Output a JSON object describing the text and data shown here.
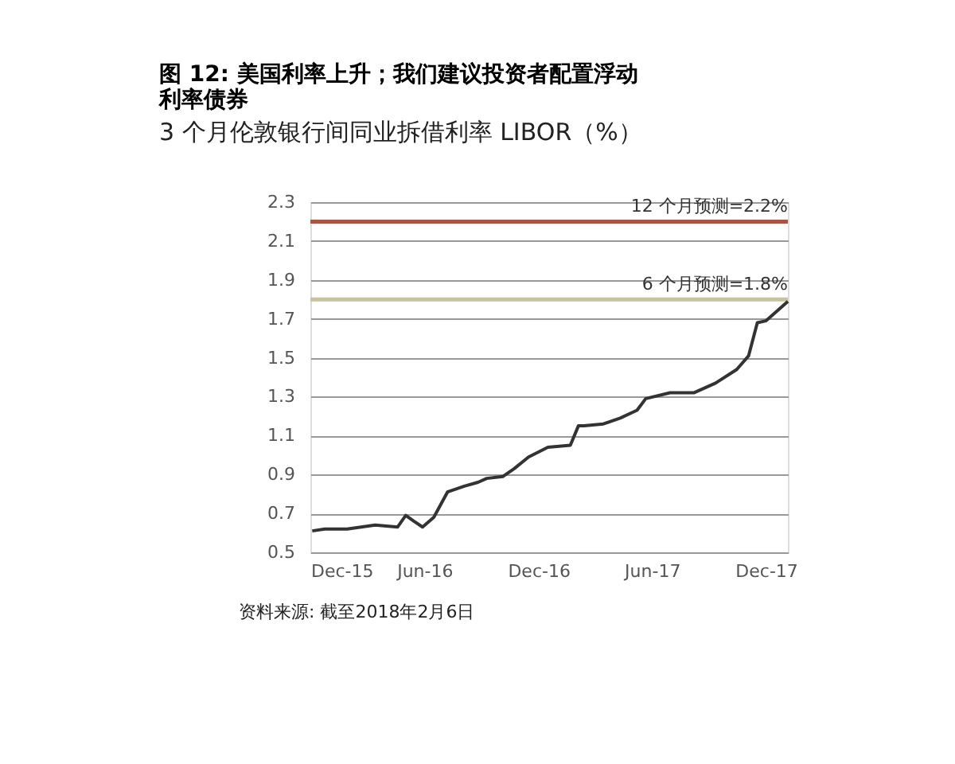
{
  "chart_data": {
    "type": "line",
    "title": "图 12: 美国利率上升；我们建议投资者配置浮动利率债券",
    "subtitle": "3 个月伦敦银行间同业拆借利率 LIBOR（%）",
    "annotations": [
      "资料来源: 截至2018年2月6日"
    ],
    "x": [
      "2015-12-04",
      "2015-12-24",
      "2016-01-29",
      "2016-03-14",
      "2016-04-19",
      "2016-05-02",
      "2016-05-15",
      "2016-05-29",
      "2016-06-16",
      "2016-07-08",
      "2016-08-04",
      "2016-08-26",
      "2016-09-09",
      "2016-10-05",
      "2016-10-23",
      "2016-11-15",
      "2016-12-16",
      "2017-01-21",
      "2017-02-03",
      "2017-02-12",
      "2017-03-15",
      "2017-04-11",
      "2017-05-08",
      "2017-05-22",
      "2017-06-30",
      "2017-08-07",
      "2017-09-11",
      "2017-10-15",
      "2017-11-03",
      "2017-11-17",
      "2017-12-01",
      "2018-01-05"
    ],
    "series": [
      {
        "color": "#333333",
        "values": [
          0.61,
          0.62,
          0.62,
          0.64,
          0.63,
          0.69,
          0.66,
          0.63,
          0.68,
          0.81,
          0.84,
          0.86,
          0.88,
          0.89,
          0.93,
          0.99,
          1.04,
          1.05,
          1.15,
          1.15,
          1.16,
          1.19,
          1.23,
          1.29,
          1.32,
          1.32,
          1.37,
          1.44,
          1.51,
          1.68,
          1.69,
          1.79
        ]
      }
    ],
    "xlim": [
      "2015-12-01",
      "2018-01-05"
    ],
    "xticks": [
      {
        "value": "2015-12-01",
        "label": "Dec-15"
      },
      {
        "value": "2016-06-01",
        "label": "Jun-16"
      },
      {
        "value": "2016-12-01",
        "label": "Dec-16"
      },
      {
        "value": "2017-06-01",
        "label": "Jun-17"
      },
      {
        "value": "2017-12-01",
        "label": "Dec-17"
      }
    ],
    "ylim": [
      0.5,
      2.3
    ],
    "yticks": [
      0.5,
      0.7,
      0.9,
      1.1,
      1.3,
      1.5,
      1.7,
      1.9,
      2.1,
      2.3
    ],
    "ref_lines": [
      {
        "axis": "y",
        "value": 2.2,
        "label": "12 个月预测=2.2%",
        "color": "#b5503c"
      },
      {
        "axis": "y",
        "value": 1.8,
        "label": "6 个月预测=1.8%",
        "color": "#c8c39a"
      }
    ],
    "grid": "y",
    "marker": "none",
    "line_style": "solid"
  }
}
